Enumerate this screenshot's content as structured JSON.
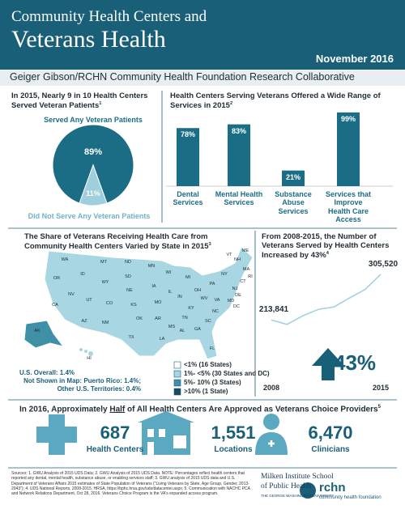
{
  "header": {
    "title_line1": "Community Health Centers and",
    "title_line2": "Veterans Health",
    "date": "November 2016",
    "subtitle": "Geiger Gibson/RCHN Community Health Foundation Research Collaborative"
  },
  "chart_data": [
    {
      "type": "pie",
      "title": "In 2015, Nearly 9 in 10 Health Centers Served Veteran Patients",
      "title_note": "1",
      "categories": [
        "Served Any Veteran Patients",
        "Did Not Serve Any Veteran Patients"
      ],
      "values": [
        89,
        11
      ],
      "value_labels": [
        "89%",
        "11%"
      ],
      "colors": [
        "#1b6d86",
        "#9fcfdc"
      ]
    },
    {
      "type": "bar",
      "title": "Health Centers Serving Veterans Offered a Wide Range of Services in 2015",
      "title_note": "2",
      "categories": [
        "Dental Services",
        "Mental Health Services",
        "Substance Abuse Services",
        "Services that Improve Health Care Access"
      ],
      "values": [
        78,
        83,
        21,
        99
      ],
      "value_labels": [
        "78%",
        "83%",
        "21%",
        "99%"
      ],
      "color": "#1b6d86",
      "ylim": [
        0,
        100
      ]
    },
    {
      "type": "line",
      "title": "From 2008-2015, the Number of Veterans Served by Health Centers Increased by 43%",
      "title_note": "4",
      "x": [
        2008,
        2009,
        2010,
        2011,
        2012,
        2013,
        2014,
        2015
      ],
      "values": [
        213841,
        205000,
        222000,
        235000,
        240000,
        258000,
        275000,
        305520
      ],
      "value_labels": [
        "213,841",
        null,
        null,
        null,
        null,
        null,
        null,
        "305,520"
      ],
      "xticks": [
        2008,
        2015
      ],
      "ylim": [
        190000,
        320000
      ],
      "color": "#9fcfdc",
      "annotation": "43%"
    }
  ],
  "map": {
    "title": "The Share of Veterans Receiving Health Care from Community Health Centers Varied by State in 2015",
    "title_note": "3",
    "states": [
      "WA",
      "OR",
      "CA",
      "NV",
      "ID",
      "MT",
      "WY",
      "UT",
      "AZ",
      "CO",
      "NM",
      "ND",
      "SD",
      "NE",
      "KS",
      "OK",
      "TX",
      "MN",
      "IA",
      "MO",
      "AR",
      "LA",
      "WI",
      "IL",
      "MS",
      "MI",
      "IN",
      "KY",
      "TN",
      "AL",
      "OH",
      "GA",
      "FL",
      "SC",
      "NC",
      "VA",
      "WV",
      "PA",
      "NY",
      "VT",
      "NH",
      "ME",
      "MA",
      "RI",
      "CT",
      "NJ",
      "DE",
      "MD",
      "DC",
      "AK",
      "HI"
    ],
    "legend": [
      {
        "label": "<1% (16 States)",
        "color": "#ffffff"
      },
      {
        "label": "1%- <5% (30 States and DC)",
        "color": "#a8d6e3"
      },
      {
        "label": "5%- 10% (3 States)",
        "color": "#3f8fa6"
      },
      {
        "label": ">10% (1 State)",
        "color": "#1b4a5b"
      }
    ],
    "notes": [
      "U.S. Overall: 1.4%",
      "Not Shown in Map: Puerto Rico: 1.4%;",
      "Other U.S. Territories: 0.4%"
    ]
  },
  "providers": {
    "title_before": "In 2016, Approximately ",
    "title_emph": "Half",
    "title_after": " of All Health Centers Are Approved as Veterans Choice Providers",
    "title_note": "5",
    "stats": [
      {
        "value": "687",
        "label": "Health Centers"
      },
      {
        "value": "1,551",
        "label": "Locations"
      },
      {
        "value": "6,470",
        "label": "Clinicians"
      }
    ]
  },
  "footer": {
    "sources": "Sources: 1. GWU Analysis of 2015 UDS Data; 2. GWU Analysis of 2015 UDS Data. NOTE: Percentages reflect health centers that reported any dental, mental health, substance abuse, or enabling services staff; 3. GWU analysis of 2015 UDS data and U.S. Department of Veterans Affairs 2015 estimates of State Population of Veterans (\"Living Veterans by State, Age Group, Gender, 2013-2043\"); 4. UDS National Reports, 2008-2015, HRSA, https://bphc.hrsa.gov/uds/datacenter.aspx; 5. Communication with NACHC PCA and Network Relations Department, Oct 28, 2016. Veterans Choice Program is the VA's expanded access program.",
    "gw_line1": "Milken Institute School",
    "gw_line2": "of Public Health",
    "gw_line3": "THE GEORGE WASHINGTON UNIVERSITY",
    "rchn": "rchn",
    "rchn_sub": "community health foundation"
  }
}
